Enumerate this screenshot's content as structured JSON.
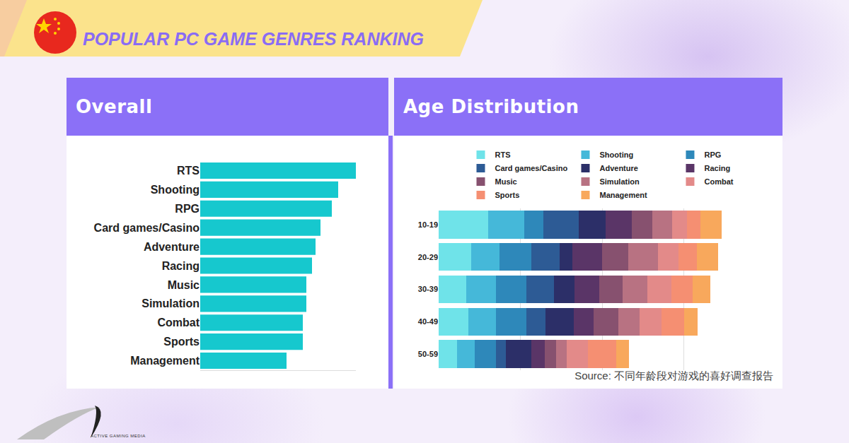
{
  "title": "POPULAR PC GAME GENRES RANKING",
  "source": "Source: 不同年龄段对游戏的喜好调查报告",
  "logo_text": "ACTIVE GAMING MEDIA",
  "chart_data": [
    {
      "type": "bar",
      "title": "Overall",
      "orientation": "horizontal",
      "categories": [
        "RTS",
        "Shooting",
        "RPG",
        "Card games/Casino",
        "Adventure",
        "Racing",
        "Music",
        "Simulation",
        "Combat",
        "Sports",
        "Management"
      ],
      "values": [
        220,
        195,
        186,
        170,
        163,
        158,
        150,
        150,
        145,
        145,
        122
      ],
      "color": "#16c8ce",
      "xlim": [
        0,
        220
      ],
      "grid": false,
      "tick_labels": "y"
    },
    {
      "type": "bar",
      "title": "Age Distribution",
      "orientation": "horizontal",
      "stacked": true,
      "categories": [
        "10-19",
        "20-29",
        "30-39",
        "40-49",
        "50-59"
      ],
      "series": [
        {
          "name": "RTS",
          "color": "#6fe3e9",
          "values": [
            12.1,
            8.0,
            6.8,
            7.3,
            4.5
          ]
        },
        {
          "name": "Shooting",
          "color": "#45b8d9",
          "values": [
            8.8,
            6.9,
            7.3,
            6.8,
            4.3
          ]
        },
        {
          "name": "RPG",
          "color": "#2e88ba",
          "values": [
            4.7,
            7.8,
            7.3,
            7.3,
            5.2
          ]
        },
        {
          "name": "Card games/Casino",
          "color": "#2d5b95",
          "values": [
            8.7,
            6.9,
            6.8,
            4.8,
            2.4
          ]
        },
        {
          "name": "Adventure",
          "color": "#2c2f68",
          "values": [
            6.6,
            3.1,
            5.0,
            6.9,
            6.2
          ]
        },
        {
          "name": "Racing",
          "color": "#5a3567",
          "values": [
            6.4,
            7.3,
            6.1,
            4.8,
            3.3
          ]
        },
        {
          "name": "Music",
          "color": "#87516f",
          "values": [
            5.0,
            6.4,
            5.7,
            6.1,
            2.9
          ]
        },
        {
          "name": "Simulation",
          "color": "#b87282",
          "values": [
            4.8,
            7.3,
            6.1,
            5.2,
            2.6
          ]
        },
        {
          "name": "Combat",
          "color": "#e38a89",
          "values": [
            3.6,
            5.0,
            5.9,
            5.4,
            5.2
          ]
        },
        {
          "name": "Sports",
          "color": "#f58f72",
          "values": [
            3.3,
            4.5,
            5.2,
            5.4,
            6.9
          ]
        },
        {
          "name": "Management",
          "color": "#f8a85c",
          "values": [
            5.2,
            5.2,
            4.3,
            3.3,
            3.1
          ]
        }
      ],
      "xlim": [
        0,
        80
      ],
      "xticks": [
        0,
        20,
        40,
        60,
        80
      ],
      "grid": true,
      "legend": "top",
      "tick_labels": "y"
    }
  ]
}
